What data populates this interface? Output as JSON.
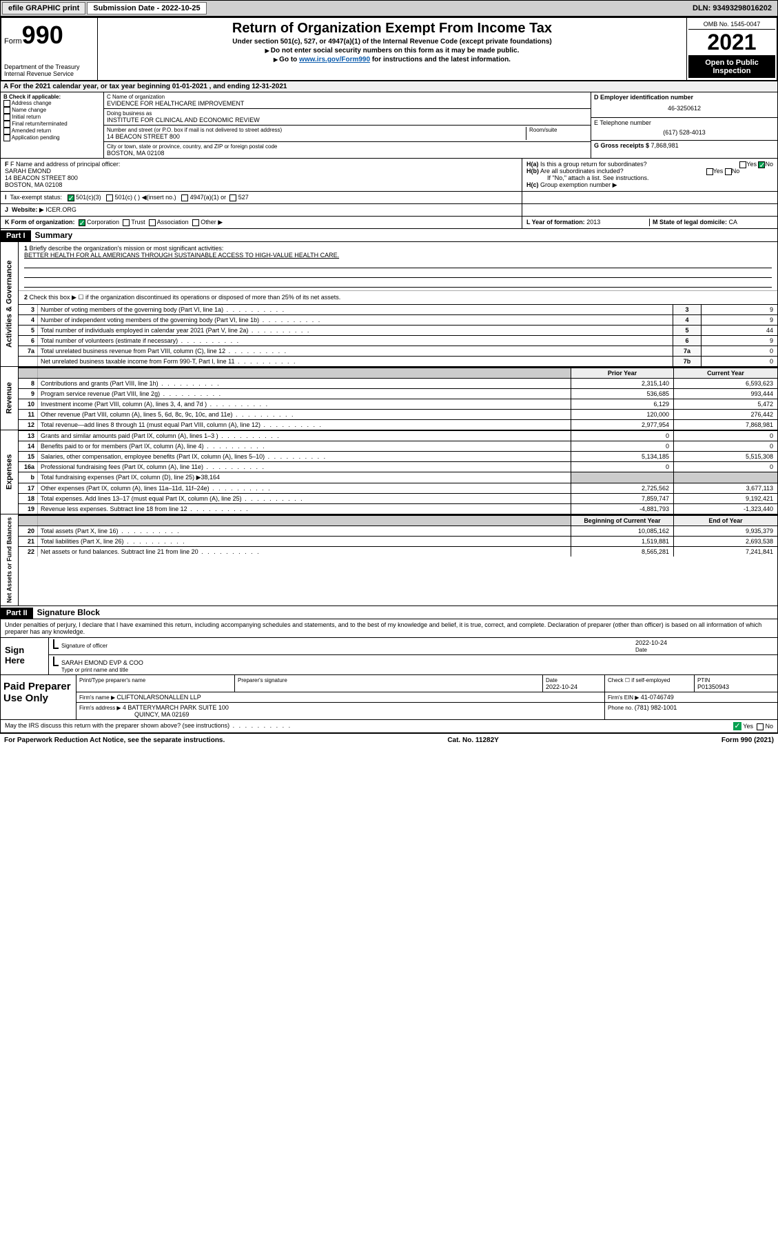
{
  "toolbar": {
    "efile_label": "efile GRAPHIC print",
    "subdate_label": "Submission Date - 2022-10-25",
    "dln_label": "DLN: 93493298016202"
  },
  "header": {
    "form_word": "Form",
    "form_no": "990",
    "dept": "Department of the Treasury",
    "irs": "Internal Revenue Service",
    "title": "Return of Organization Exempt From Income Tax",
    "sub1": "Under section 501(c), 527, or 4947(a)(1) of the Internal Revenue Code (except private foundations)",
    "sub2": "Do not enter social security numbers on this form as it may be made public.",
    "sub3_pre": "Go to ",
    "sub3_link": "www.irs.gov/Form990",
    "sub3_post": " for instructions and the latest information.",
    "omb": "OMB No. 1545-0047",
    "year": "2021",
    "inspect": "Open to Public Inspection"
  },
  "line_a": "For the 2021 calendar year, or tax year beginning 01-01-2021   , and ending 12-31-2021",
  "col_b": {
    "title": "B Check if applicable:",
    "items": [
      "Address change",
      "Name change",
      "Initial return",
      "Final return/terminated",
      "Amended return",
      "Application pending"
    ]
  },
  "col_c": {
    "name_lbl": "C Name of organization",
    "name": "EVIDENCE FOR HEALTHCARE IMPROVEMENT",
    "dba_lbl": "Doing business as",
    "dba": "INSTITUTE FOR CLINICAL AND ECONOMIC REVIEW",
    "addr_lbl": "Number and street (or P.O. box if mail is not delivered to street address)",
    "room_lbl": "Room/suite",
    "addr": "14 BEACON STREET 800",
    "city_lbl": "City or town, state or province, country, and ZIP or foreign postal code",
    "city": "BOSTON, MA  02108"
  },
  "col_de": {
    "d_lbl": "D Employer identification number",
    "d_val": "46-3250612",
    "e_lbl": "E Telephone number",
    "e_val": "(617) 528-4013",
    "g_lbl": "G Gross receipts $ ",
    "g_val": "7,868,981"
  },
  "row_f": {
    "lbl": "F Name and address of principal officer:",
    "name": "SARAH EMOND",
    "addr1": "14 BEACON STREET 800",
    "addr2": "BOSTON, MA  02108"
  },
  "row_h": {
    "ha": "Is this a group return for subordinates?",
    "hb": "Are all subordinates included?",
    "hb_note": "If \"No,\" attach a list. See instructions.",
    "hc": "Group exemption number",
    "yes": "Yes",
    "no": "No"
  },
  "row_i": {
    "lbl": "Tax-exempt status:",
    "a": "501(c)(3)",
    "b": "501(c) (  )",
    "b2": "(insert no.)",
    "c": "4947(a)(1) or",
    "d": "527"
  },
  "row_j": {
    "lbl": "Website:",
    "val": "ICER.ORG"
  },
  "row_k": {
    "lbl": "K Form of organization:",
    "corp": "Corporation",
    "trust": "Trust",
    "assoc": "Association",
    "other": "Other"
  },
  "row_l": {
    "lbl": "L Year of formation: ",
    "val": "2013"
  },
  "row_m": {
    "lbl": "M State of legal domicile: ",
    "val": "CA"
  },
  "part1": {
    "bar": "Part I",
    "title": "Summary",
    "side_gov": "Activities & Governance",
    "side_rev": "Revenue",
    "side_exp": "Expenses",
    "side_net": "Net Assets or Fund Balances",
    "q1": "Briefly describe the organization's mission or most significant activities:",
    "mission": "BETTER HEALTH FOR ALL AMERICANS THROUGH SUSTAINABLE ACCESS TO HIGH-VALUE HEALTH CARE.",
    "q2": "Check this box ▶ ☐  if the organization discontinued its operations or disposed of more than 25% of its net assets.",
    "lines_gov": [
      {
        "n": "3",
        "t": "Number of voting members of the governing body (Part VI, line 1a)",
        "bn": "3",
        "v": "9"
      },
      {
        "n": "4",
        "t": "Number of independent voting members of the governing body (Part VI, line 1b)",
        "bn": "4",
        "v": "9"
      },
      {
        "n": "5",
        "t": "Total number of individuals employed in calendar year 2021 (Part V, line 2a)",
        "bn": "5",
        "v": "44"
      },
      {
        "n": "6",
        "t": "Total number of volunteers (estimate if necessary)",
        "bn": "6",
        "v": "9"
      },
      {
        "n": "7a",
        "t": "Total unrelated business revenue from Part VIII, column (C), line 12",
        "bn": "7a",
        "v": "0"
      },
      {
        "n": "",
        "t": "Net unrelated business taxable income from Form 990-T, Part I, line 11",
        "bn": "7b",
        "v": "0"
      }
    ],
    "col_prior": "Prior Year",
    "col_curr": "Current Year",
    "lines_rev": [
      {
        "n": "8",
        "t": "Contributions and grants (Part VIII, line 1h)",
        "p": "2,315,140",
        "c": "6,593,623"
      },
      {
        "n": "9",
        "t": "Program service revenue (Part VIII, line 2g)",
        "p": "536,685",
        "c": "993,444"
      },
      {
        "n": "10",
        "t": "Investment income (Part VIII, column (A), lines 3, 4, and 7d )",
        "p": "6,129",
        "c": "5,472"
      },
      {
        "n": "11",
        "t": "Other revenue (Part VIII, column (A), lines 5, 6d, 8c, 9c, 10c, and 11e)",
        "p": "120,000",
        "c": "276,442"
      },
      {
        "n": "12",
        "t": "Total revenue—add lines 8 through 11 (must equal Part VIII, column (A), line 12)",
        "p": "2,977,954",
        "c": "7,868,981"
      }
    ],
    "lines_exp": [
      {
        "n": "13",
        "t": "Grants and similar amounts paid (Part IX, column (A), lines 1–3 )",
        "p": "0",
        "c": "0"
      },
      {
        "n": "14",
        "t": "Benefits paid to or for members (Part IX, column (A), line 4)",
        "p": "0",
        "c": "0"
      },
      {
        "n": "15",
        "t": "Salaries, other compensation, employee benefits (Part IX, column (A), lines 5–10)",
        "p": "5,134,185",
        "c": "5,515,308"
      },
      {
        "n": "16a",
        "t": "Professional fundraising fees (Part IX, column (A), line 11e)",
        "p": "0",
        "c": "0"
      }
    ],
    "line_b": {
      "n": "b",
      "t": "Total fundraising expenses (Part IX, column (D), line 25) ▶38,164"
    },
    "lines_exp2": [
      {
        "n": "17",
        "t": "Other expenses (Part IX, column (A), lines 11a–11d, 11f–24e)",
        "p": "2,725,562",
        "c": "3,677,113"
      },
      {
        "n": "18",
        "t": "Total expenses. Add lines 13–17 (must equal Part IX, column (A), line 25)",
        "p": "7,859,747",
        "c": "9,192,421"
      },
      {
        "n": "19",
        "t": "Revenue less expenses. Subtract line 18 from line 12",
        "p": "-4,881,793",
        "c": "-1,323,440"
      }
    ],
    "col_beg": "Beginning of Current Year",
    "col_end": "End of Year",
    "lines_net": [
      {
        "n": "20",
        "t": "Total assets (Part X, line 16)",
        "p": "10,085,162",
        "c": "9,935,379"
      },
      {
        "n": "21",
        "t": "Total liabilities (Part X, line 26)",
        "p": "1,519,881",
        "c": "2,693,538"
      },
      {
        "n": "22",
        "t": "Net assets or fund balances. Subtract line 21 from line 20",
        "p": "8,565,281",
        "c": "7,241,841"
      }
    ]
  },
  "part2": {
    "bar": "Part II",
    "title": "Signature Block",
    "decl": "Under penalties of perjury, I declare that I have examined this return, including accompanying schedules and statements, and to the best of my knowledge and belief, it is true, correct, and complete. Declaration of preparer (other than officer) is based on all information of which preparer has any knowledge.",
    "sign_here": "Sign Here",
    "sig_officer": "Signature of officer",
    "sig_date": "Date",
    "sig_date_val": "2022-10-24",
    "officer": "SARAH EMOND EVP & COO",
    "type_name": "Type or print name and title",
    "paid_prep": "Paid Preparer Use Only",
    "pt_name": "Print/Type preparer's name",
    "pt_sig": "Preparer's signature",
    "pt_date_lbl": "Date",
    "pt_date": "2022-10-24",
    "pt_check": "Check ☐ if self-employed",
    "ptin_lbl": "PTIN",
    "ptin": "P01350943",
    "firm_name_lbl": "Firm's name  ▶ ",
    "firm_name": "CLIFTONLARSONALLEN LLP",
    "firm_ein_lbl": "Firm's EIN ▶ ",
    "firm_ein": "41-0746749",
    "firm_addr_lbl": "Firm's address ▶ ",
    "firm_addr": "4 BATTERYMARCH PARK SUITE 100",
    "firm_city": "QUINCY, MA  02169",
    "phone_lbl": "Phone no. ",
    "phone": "(781) 982-1001",
    "discuss": "May the IRS discuss this return with the preparer shown above? (see instructions)"
  },
  "footer": {
    "pra": "For Paperwork Reduction Act Notice, see the separate instructions.",
    "cat": "Cat. No. 11282Y",
    "form": "Form 990 (2021)"
  },
  "colors": {
    "link": "#0b5cad",
    "check": "#06a050"
  }
}
